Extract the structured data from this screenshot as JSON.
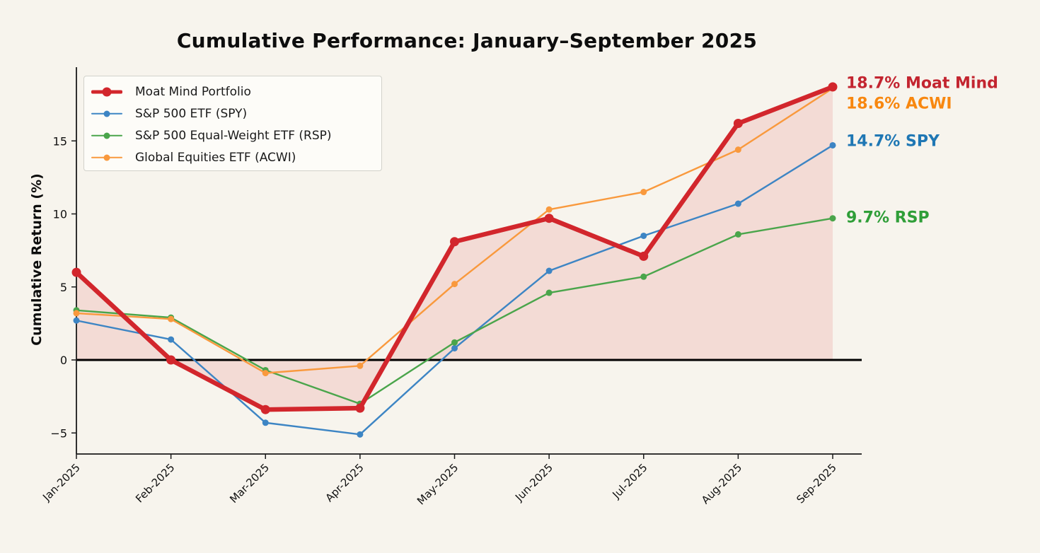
{
  "figure": {
    "background": "#f7f4ed"
  },
  "chart_data": {
    "type": "line",
    "title": "Cumulative Performance: January–September 2025",
    "ylabel": "Cumulative Return (%)",
    "x_categories": [
      "Jan-2025",
      "Feb-2025",
      "Mar-2025",
      "Apr-2025",
      "May-2025",
      "Jun-2025",
      "Jul-2025",
      "Aug-2025",
      "Sep-2025"
    ],
    "y_ticks": [
      -5,
      0,
      5,
      10,
      15
    ],
    "ylim": [
      -6.5,
      20.0
    ],
    "grid": false,
    "legend_position": "upper-left",
    "axis_color": "#1a1a1a",
    "tick_label_color": "#111111",
    "zero_line": true,
    "zero_line_color": "#000000",
    "fill_color": "rgba(211,38,45,0.12)",
    "series": [
      {
        "name": "Moat Mind Portfolio",
        "color": "#d2262c",
        "line_width": 6.5,
        "marker_size": 13,
        "fill_to_zero": true,
        "values": [
          6.0,
          0.0,
          -3.4,
          -3.3,
          8.1,
          9.7,
          7.1,
          16.2,
          18.7
        ]
      },
      {
        "name": "S&P 500 ETF (SPY)",
        "color": "#3d85c4",
        "line_width": 2.4,
        "marker_size": 9,
        "fill_to_zero": false,
        "values": [
          2.7,
          1.4,
          -4.3,
          -5.1,
          0.8,
          6.1,
          8.5,
          10.7,
          14.7
        ]
      },
      {
        "name": "S&P 500 Equal-Weight ETF (RSP)",
        "color": "#4aa54b",
        "line_width": 2.4,
        "marker_size": 9,
        "fill_to_zero": false,
        "values": [
          3.4,
          2.9,
          -0.7,
          -3.0,
          1.2,
          4.6,
          5.7,
          8.6,
          9.7
        ]
      },
      {
        "name": "Global Equities ETF (ACWI)",
        "color": "#f9993d",
        "line_width": 2.4,
        "marker_size": 9,
        "fill_to_zero": false,
        "values": [
          3.2,
          2.8,
          -0.9,
          -0.4,
          5.2,
          10.3,
          11.5,
          14.4,
          18.6
        ]
      }
    ],
    "annotations": [
      {
        "text": "18.7% Moat Mind",
        "color": "#c32530",
        "anchor_pct": 18.95
      },
      {
        "text": "18.6% ACWI",
        "color": "#f8870f",
        "anchor_pct": 17.55
      },
      {
        "text": "14.7% SPY",
        "color": "#1f77b4",
        "anchor_pct": 14.95
      },
      {
        "text": "9.7% RSP",
        "color": "#2f9e38",
        "anchor_pct": 9.75
      }
    ]
  }
}
